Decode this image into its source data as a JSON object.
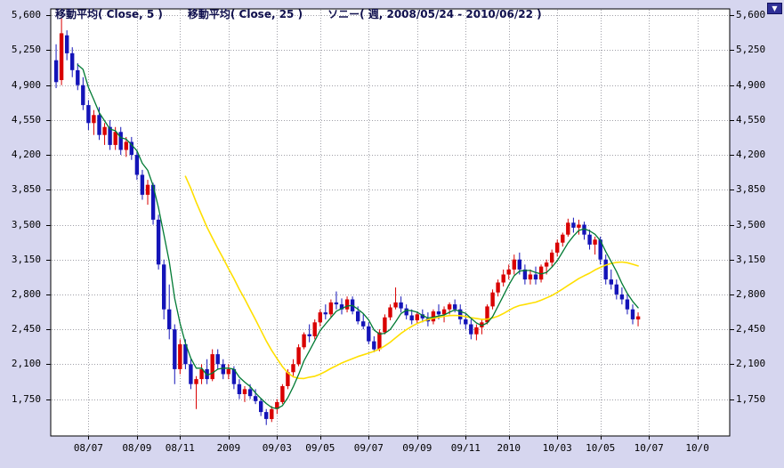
{
  "controls": {
    "dropdown_glyph": "▼"
  },
  "colors": {
    "outer_bg": "#d6d6ef",
    "plot_bg": "#ffffff",
    "frame": "#000000",
    "grid": "#a0a0a8",
    "up": "#d90000",
    "down": "#1414b8",
    "ma5": "#007a33",
    "ma25": "#ffdf00",
    "axis_text": "#000000",
    "legend_text": "#10104e"
  },
  "chart_data": {
    "type": "candlestick",
    "title": "ソニー( 週, 2008/05/24 - 2010/06/22 )",
    "instrument": "ソニー",
    "interval": "週",
    "date_range": "2008/05/24 - 2010/06/22",
    "legend": {
      "ma5_label": "移動平均( Close, 5 )",
      "ma25_label": "移動平均( Close, 25 )",
      "series_label": "ソニー( 週, 2008/05/24 - 2010/06/22 )"
    },
    "overlays": [
      {
        "name": "移動平均( Close, 5 )",
        "type": "sma",
        "period": 5,
        "source": "close",
        "color": "#007a33"
      },
      {
        "name": "移動平均( Close, 25 )",
        "type": "sma",
        "period": 25,
        "source": "close",
        "color": "#ffdf00"
      }
    ],
    "y_axis": {
      "tick_labels": [
        "5,600",
        "5,250",
        "4,900",
        "4,550",
        "4,200",
        "3,850",
        "3,500",
        "3,150",
        "2,800",
        "2,450",
        "2,100",
        "1,750"
      ],
      "tick_values": [
        5600,
        5250,
        4900,
        4550,
        4200,
        3850,
        3500,
        3150,
        2800,
        2450,
        2100,
        1750
      ],
      "min": 1380,
      "max": 5665,
      "grid": true
    },
    "x_axis": {
      "total_weeks": 126,
      "labels": [
        {
          "label": "08/07",
          "week": 6
        },
        {
          "label": "08/09",
          "week": 15
        },
        {
          "label": "08/11",
          "week": 23
        },
        {
          "label": "2009",
          "week": 32
        },
        {
          "label": "09/03",
          "week": 41
        },
        {
          "label": "09/05",
          "week": 49
        },
        {
          "label": "09/07",
          "week": 58
        },
        {
          "label": "09/09",
          "week": 67
        },
        {
          "label": "09/11",
          "week": 76
        },
        {
          "label": "2010",
          "week": 84
        },
        {
          "label": "10/03",
          "week": 93
        },
        {
          "label": "10/05",
          "week": 101
        },
        {
          "label": "10/07",
          "week": 110
        },
        {
          "label": "10/0",
          "week": 119
        }
      ]
    },
    "ohlc_columns": [
      "open",
      "high",
      "low",
      "close"
    ],
    "ohlc": [
      [
        5150,
        5310,
        4870,
        4930
      ],
      [
        4950,
        5570,
        4900,
        5420
      ],
      [
        5400,
        5450,
        5150,
        5220
      ],
      [
        5220,
        5280,
        4980,
        5050
      ],
      [
        5050,
        5120,
        4850,
        4900
      ],
      [
        4900,
        4980,
        4650,
        4700
      ],
      [
        4700,
        4750,
        4450,
        4520
      ],
      [
        4520,
        4650,
        4400,
        4600
      ],
      [
        4600,
        4680,
        4350,
        4400
      ],
      [
        4400,
        4520,
        4300,
        4480
      ],
      [
        4480,
        4550,
        4250,
        4300
      ],
      [
        4300,
        4480,
        4250,
        4430
      ],
      [
        4430,
        4480,
        4200,
        4250
      ],
      [
        4250,
        4380,
        4180,
        4330
      ],
      [
        4330,
        4380,
        4150,
        4200
      ],
      [
        4200,
        4250,
        3950,
        4000
      ],
      [
        4000,
        4050,
        3750,
        3800
      ],
      [
        3800,
        3950,
        3700,
        3900
      ],
      [
        3900,
        3920,
        3500,
        3550
      ],
      [
        3550,
        3600,
        3050,
        3100
      ],
      [
        3100,
        3150,
        2550,
        2650
      ],
      [
        2650,
        2900,
        2350,
        2450
      ],
      [
        2450,
        2500,
        1900,
        2050
      ],
      [
        2050,
        2350,
        2000,
        2300
      ],
      [
        2300,
        2350,
        2050,
        2100
      ],
      [
        2100,
        2150,
        1850,
        1900
      ],
      [
        1900,
        1980,
        1650,
        1950
      ],
      [
        1950,
        2100,
        1900,
        2050
      ],
      [
        2050,
        2150,
        1900,
        1950
      ],
      [
        1950,
        2250,
        1930,
        2200
      ],
      [
        2200,
        2250,
        2050,
        2100
      ],
      [
        2100,
        2150,
        1950,
        2000
      ],
      [
        2000,
        2100,
        1950,
        2050
      ],
      [
        2050,
        2080,
        1850,
        1900
      ],
      [
        1900,
        1950,
        1750,
        1800
      ],
      [
        1800,
        1880,
        1720,
        1850
      ],
      [
        1850,
        1900,
        1750,
        1780
      ],
      [
        1780,
        1850,
        1700,
        1730
      ],
      [
        1730,
        1760,
        1580,
        1620
      ],
      [
        1620,
        1650,
        1490,
        1550
      ],
      [
        1550,
        1680,
        1520,
        1650
      ],
      [
        1650,
        1750,
        1600,
        1720
      ],
      [
        1720,
        1900,
        1700,
        1880
      ],
      [
        1880,
        2050,
        1850,
        2020
      ],
      [
        2020,
        2150,
        1980,
        2100
      ],
      [
        2100,
        2300,
        2080,
        2270
      ],
      [
        2270,
        2420,
        2250,
        2400
      ],
      [
        2400,
        2500,
        2320,
        2380
      ],
      [
        2380,
        2550,
        2350,
        2520
      ],
      [
        2520,
        2650,
        2480,
        2620
      ],
      [
        2620,
        2700,
        2550,
        2600
      ],
      [
        2600,
        2750,
        2570,
        2720
      ],
      [
        2720,
        2830,
        2650,
        2700
      ],
      [
        2700,
        2760,
        2600,
        2650
      ],
      [
        2650,
        2780,
        2620,
        2750
      ],
      [
        2750,
        2780,
        2600,
        2630
      ],
      [
        2630,
        2680,
        2500,
        2530
      ],
      [
        2530,
        2600,
        2450,
        2480
      ],
      [
        2480,
        2520,
        2300,
        2330
      ],
      [
        2330,
        2380,
        2220,
        2250
      ],
      [
        2250,
        2450,
        2230,
        2420
      ],
      [
        2420,
        2600,
        2400,
        2570
      ],
      [
        2570,
        2700,
        2540,
        2670
      ],
      [
        2670,
        2870,
        2650,
        2720
      ],
      [
        2720,
        2780,
        2620,
        2660
      ],
      [
        2660,
        2700,
        2550,
        2590
      ],
      [
        2590,
        2650,
        2500,
        2540
      ],
      [
        2540,
        2620,
        2510,
        2600
      ],
      [
        2600,
        2650,
        2520,
        2560
      ],
      [
        2560,
        2620,
        2480,
        2530
      ],
      [
        2530,
        2650,
        2500,
        2630
      ],
      [
        2630,
        2700,
        2550,
        2600
      ],
      [
        2600,
        2680,
        2520,
        2650
      ],
      [
        2650,
        2720,
        2600,
        2700
      ],
      [
        2700,
        2750,
        2620,
        2650
      ],
      [
        2650,
        2700,
        2500,
        2550
      ],
      [
        2550,
        2600,
        2450,
        2500
      ],
      [
        2500,
        2550,
        2350,
        2400
      ],
      [
        2400,
        2500,
        2340,
        2470
      ],
      [
        2470,
        2550,
        2400,
        2520
      ],
      [
        2520,
        2700,
        2500,
        2680
      ],
      [
        2680,
        2850,
        2650,
        2820
      ],
      [
        2820,
        2950,
        2780,
        2920
      ],
      [
        2920,
        3050,
        2880,
        3000
      ],
      [
        3000,
        3100,
        2950,
        3050
      ],
      [
        3050,
        3200,
        3000,
        3150
      ],
      [
        3150,
        3220,
        3000,
        3050
      ],
      [
        3050,
        3100,
        2900,
        2950
      ],
      [
        2950,
        3050,
        2900,
        3000
      ],
      [
        3000,
        3080,
        2900,
        2950
      ],
      [
        2950,
        3100,
        2920,
        3080
      ],
      [
        3080,
        3150,
        3000,
        3120
      ],
      [
        3120,
        3250,
        3080,
        3220
      ],
      [
        3220,
        3350,
        3180,
        3320
      ],
      [
        3320,
        3420,
        3280,
        3400
      ],
      [
        3400,
        3560,
        3380,
        3520
      ],
      [
        3520,
        3570,
        3420,
        3470
      ],
      [
        3470,
        3550,
        3400,
        3500
      ],
      [
        3500,
        3530,
        3350,
        3400
      ],
      [
        3400,
        3450,
        3250,
        3300
      ],
      [
        3300,
        3380,
        3200,
        3350
      ],
      [
        3350,
        3380,
        3100,
        3150
      ],
      [
        3150,
        3200,
        2900,
        2950
      ],
      [
        2950,
        3050,
        2850,
        2900
      ],
      [
        2900,
        2950,
        2750,
        2800
      ],
      [
        2800,
        2870,
        2700,
        2750
      ],
      [
        2750,
        2800,
        2600,
        2650
      ],
      [
        2650,
        2700,
        2500,
        2550
      ],
      [
        2550,
        2620,
        2480,
        2580
      ]
    ]
  }
}
